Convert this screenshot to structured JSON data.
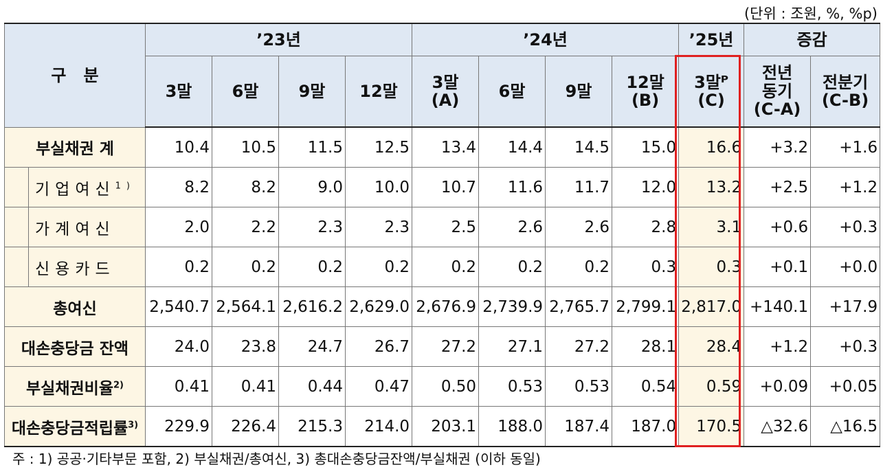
{
  "unit": "(단위 : 조원, %, %p)",
  "header": {
    "category": "구   분",
    "years": [
      "’23년",
      "’24년",
      "’25년",
      "증감"
    ],
    "quarters": [
      "3말",
      "6말",
      "9말",
      "12말",
      "3말\n(A)",
      "6말",
      "9말",
      "12말\n(B)",
      "3말ᴾ\n(C)",
      "전년\n동기\n(C-A)",
      "전분기\n(C-B)"
    ]
  },
  "rows": [
    {
      "label": "부실채권 계",
      "values": [
        "10.4",
        "10.5",
        "11.5",
        "12.5",
        "13.4",
        "14.4",
        "14.5",
        "15.0",
        "16.6",
        "+3.2",
        "+1.6"
      ]
    },
    {
      "label": "기업여신",
      "sup": "1)",
      "values": [
        "8.2",
        "8.2",
        "9.0",
        "10.0",
        "10.7",
        "11.6",
        "11.7",
        "12.0",
        "13.2",
        "+2.5",
        "+1.2"
      ]
    },
    {
      "label": "가계여신",
      "values": [
        "2.0",
        "2.2",
        "2.3",
        "2.3",
        "2.5",
        "2.6",
        "2.6",
        "2.8",
        "3.1",
        "+0.6",
        "+0.3"
      ]
    },
    {
      "label": "신용카드",
      "values": [
        "0.2",
        "0.2",
        "0.2",
        "0.2",
        "0.2",
        "0.2",
        "0.2",
        "0.3",
        "0.3",
        "+0.1",
        "+0.0"
      ]
    },
    {
      "label": "총여신",
      "values": [
        "2,540.7",
        "2,564.1",
        "2,616.2",
        "2,629.0",
        "2,676.9",
        "2,739.9",
        "2,765.7",
        "2,799.1",
        "2,817.0",
        "+140.1",
        "+17.9"
      ]
    },
    {
      "label": "대손충당금 잔액",
      "values": [
        "24.0",
        "23.8",
        "24.7",
        "26.7",
        "27.2",
        "27.1",
        "27.2",
        "28.1",
        "28.4",
        "+1.2",
        "+0.3"
      ]
    },
    {
      "label": "부실채권비율",
      "sup": "2)",
      "values": [
        "0.41",
        "0.41",
        "0.44",
        "0.47",
        "0.50",
        "0.53",
        "0.53",
        "0.54",
        "0.59",
        "+0.09",
        "+0.05"
      ]
    },
    {
      "label": "대손충당금적립률",
      "sup": "3)",
      "values": [
        "229.9",
        "226.4",
        "215.3",
        "214.0",
        "203.1",
        "188.0",
        "187.4",
        "187.0",
        "170.5",
        "△32.6",
        "△16.5"
      ]
    }
  ],
  "note": "주 : 1) 공공·기타부문 포함,   2) 부실채권/총여신,   3) 총대손충당금잔액/부실채권 (이하 동일)",
  "colors": {
    "header_bg": "#dfe8f3",
    "label_bg": "#fdf6e4",
    "highlight": "#e02020"
  }
}
